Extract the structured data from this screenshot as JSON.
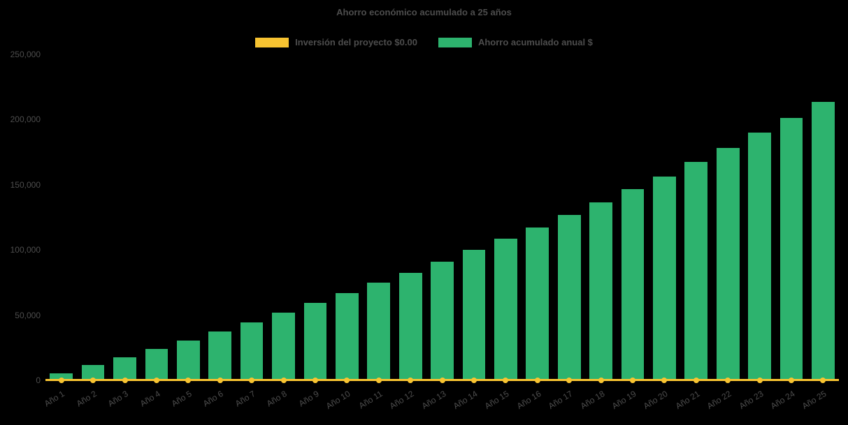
{
  "chart": {
    "title": "Ahorro económico acumulado a 25 años",
    "legend": [
      {
        "label": "Inversión del proyecto $0.00"
      },
      {
        "label": "Ahorro acumulado anual $"
      }
    ]
  },
  "chart_data": {
    "type": "bar",
    "title": "Ahorro económico acumulado a 25 años",
    "categories": [
      "Año 1",
      "Año 2",
      "Año 3",
      "Año 4",
      "Año 5",
      "Año 6",
      "Año 7",
      "Año 8",
      "Año 9",
      "Año 10",
      "Año 11",
      "Año 12",
      "Año 13",
      "Año 14",
      "Año 15",
      "Año 16",
      "Año 17",
      "Año 18",
      "Año 19",
      "Año 20",
      "Año 21",
      "Año 22",
      "Año 23",
      "Año 24",
      "Año 25"
    ],
    "series": [
      {
        "name": "Inversión del proyecto $0.00",
        "type": "line",
        "color": "#f7c331",
        "values": [
          0,
          0,
          0,
          0,
          0,
          0,
          0,
          0,
          0,
          0,
          0,
          0,
          0,
          0,
          0,
          0,
          0,
          0,
          0,
          0,
          0,
          0,
          0,
          0,
          0
        ]
      },
      {
        "name": "Ahorro acumulado anual $",
        "type": "bar",
        "color": "#2db36e",
        "values": [
          5300,
          11600,
          17700,
          24100,
          30600,
          37400,
          44500,
          52000,
          59600,
          66800,
          74700,
          82700,
          91200,
          100000,
          108500,
          117500,
          127000,
          136500,
          146500,
          156500,
          167500,
          178500,
          190000,
          201500,
          213500
        ]
      }
    ],
    "xlabel": "",
    "ylabel": "",
    "ylim": [
      0,
      250000
    ],
    "yticks": [
      0,
      50000,
      100000,
      150000,
      200000,
      250000
    ],
    "grid": false,
    "legend_position": "top",
    "background": "#000000",
    "text_color": "#4d4d4d"
  }
}
